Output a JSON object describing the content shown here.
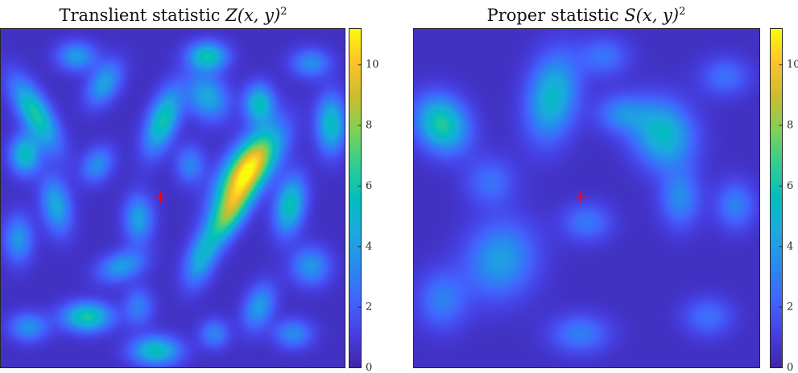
{
  "chart_data": [
    {
      "type": "heatmap",
      "title_text": "Translient statistic ",
      "title_math": "Z(x, y)",
      "title_sup": "2",
      "colorbar": {
        "min": 0,
        "max": 11.2,
        "ticks": [
          "0",
          "2",
          "4",
          "6",
          "8",
          "10"
        ],
        "tick_values": [
          0,
          2,
          4,
          6,
          8,
          10
        ],
        "colormap": "parula"
      },
      "marker": {
        "symbol": "+",
        "color": "#ff0000",
        "x": 0.465,
        "y": 0.5
      },
      "blobs": [
        {
          "x": 0.72,
          "y": 0.41,
          "sx": 0.04,
          "sy": 0.09,
          "rot": 35,
          "value": 11
        },
        {
          "x": 0.66,
          "y": 0.55,
          "sx": 0.03,
          "sy": 0.07,
          "rot": 30,
          "value": 6.5
        },
        {
          "x": 0.84,
          "y": 0.52,
          "sx": 0.03,
          "sy": 0.06,
          "rot": 10,
          "value": 5.8
        },
        {
          "x": 0.1,
          "y": 0.25,
          "sx": 0.03,
          "sy": 0.08,
          "rot": -30,
          "value": 6.2
        },
        {
          "x": 0.07,
          "y": 0.37,
          "sx": 0.03,
          "sy": 0.04,
          "rot": 0,
          "value": 5.6
        },
        {
          "x": 0.47,
          "y": 0.27,
          "sx": 0.03,
          "sy": 0.07,
          "rot": 20,
          "value": 6.0
        },
        {
          "x": 0.75,
          "y": 0.22,
          "sx": 0.03,
          "sy": 0.04,
          "rot": 0,
          "value": 5.5
        },
        {
          "x": 0.96,
          "y": 0.28,
          "sx": 0.03,
          "sy": 0.06,
          "rot": 0,
          "value": 5.5
        },
        {
          "x": 0.6,
          "y": 0.08,
          "sx": 0.04,
          "sy": 0.03,
          "rot": 0,
          "value": 5.8
        },
        {
          "x": 0.6,
          "y": 0.2,
          "sx": 0.04,
          "sy": 0.05,
          "rot": -30,
          "value": 4.5
        },
        {
          "x": 0.25,
          "y": 0.85,
          "sx": 0.05,
          "sy": 0.03,
          "rot": 0,
          "value": 6.2
        },
        {
          "x": 0.45,
          "y": 0.95,
          "sx": 0.05,
          "sy": 0.03,
          "rot": 0,
          "value": 5.6
        },
        {
          "x": 0.3,
          "y": 0.16,
          "sx": 0.03,
          "sy": 0.05,
          "rot": 30,
          "value": 4.2
        },
        {
          "x": 0.4,
          "y": 0.56,
          "sx": 0.03,
          "sy": 0.05,
          "rot": 0,
          "value": 4.2
        },
        {
          "x": 0.16,
          "y": 0.52,
          "sx": 0.03,
          "sy": 0.06,
          "rot": -10,
          "value": 4.5
        },
        {
          "x": 0.58,
          "y": 0.68,
          "sx": 0.03,
          "sy": 0.06,
          "rot": 20,
          "value": 4.3
        },
        {
          "x": 0.35,
          "y": 0.7,
          "sx": 0.05,
          "sy": 0.03,
          "rot": -20,
          "value": 4.0
        },
        {
          "x": 0.05,
          "y": 0.62,
          "sx": 0.03,
          "sy": 0.05,
          "rot": 0,
          "value": 3.8
        },
        {
          "x": 0.9,
          "y": 0.7,
          "sx": 0.04,
          "sy": 0.04,
          "rot": 0,
          "value": 3.8
        },
        {
          "x": 0.75,
          "y": 0.82,
          "sx": 0.03,
          "sy": 0.05,
          "rot": 20,
          "value": 4.0
        },
        {
          "x": 0.22,
          "y": 0.08,
          "sx": 0.04,
          "sy": 0.03,
          "rot": 0,
          "value": 4.0
        },
        {
          "x": 0.08,
          "y": 0.88,
          "sx": 0.04,
          "sy": 0.03,
          "rot": 0,
          "value": 3.6
        },
        {
          "x": 0.9,
          "y": 0.1,
          "sx": 0.04,
          "sy": 0.03,
          "rot": 0,
          "value": 3.5
        },
        {
          "x": 0.55,
          "y": 0.4,
          "sx": 0.03,
          "sy": 0.04,
          "rot": 0,
          "value": 3.2
        },
        {
          "x": 0.28,
          "y": 0.4,
          "sx": 0.03,
          "sy": 0.04,
          "rot": 30,
          "value": 3.5
        },
        {
          "x": 0.85,
          "y": 0.9,
          "sx": 0.04,
          "sy": 0.03,
          "rot": 0,
          "value": 3.4
        },
        {
          "x": 0.62,
          "y": 0.9,
          "sx": 0.03,
          "sy": 0.03,
          "rot": 0,
          "value": 3.2
        },
        {
          "x": 0.4,
          "y": 0.82,
          "sx": 0.03,
          "sy": 0.04,
          "rot": 0,
          "value": 3.0
        }
      ]
    },
    {
      "type": "heatmap",
      "title_text": "Proper statistic ",
      "title_math": "S(x, y)",
      "title_sup": "2",
      "colorbar": {
        "min": 0,
        "max": 11.2,
        "ticks": [
          "0",
          "2",
          "4",
          "6",
          "8",
          "10"
        ],
        "tick_values": [
          0,
          2,
          4,
          6,
          8,
          10
        ],
        "colormap": "parula"
      },
      "marker": {
        "symbol": "+",
        "color": "#ff0000",
        "x": 0.485,
        "y": 0.5
      },
      "blobs": [
        {
          "x": 0.08,
          "y": 0.28,
          "sx": 0.05,
          "sy": 0.06,
          "rot": -30,
          "value": 6.4
        },
        {
          "x": 0.4,
          "y": 0.2,
          "sx": 0.05,
          "sy": 0.09,
          "rot": 10,
          "value": 5.3
        },
        {
          "x": 0.72,
          "y": 0.31,
          "sx": 0.06,
          "sy": 0.07,
          "rot": -20,
          "value": 5.4
        },
        {
          "x": 0.6,
          "y": 0.25,
          "sx": 0.05,
          "sy": 0.04,
          "rot": 0,
          "value": 3.2
        },
        {
          "x": 0.25,
          "y": 0.68,
          "sx": 0.07,
          "sy": 0.08,
          "rot": 20,
          "value": 4.1
        },
        {
          "x": 0.77,
          "y": 0.5,
          "sx": 0.04,
          "sy": 0.06,
          "rot": 0,
          "value": 3.4
        },
        {
          "x": 0.93,
          "y": 0.52,
          "sx": 0.04,
          "sy": 0.05,
          "rot": 0,
          "value": 3.1
        },
        {
          "x": 0.48,
          "y": 0.9,
          "sx": 0.06,
          "sy": 0.04,
          "rot": 0,
          "value": 3.0
        },
        {
          "x": 0.08,
          "y": 0.8,
          "sx": 0.05,
          "sy": 0.06,
          "rot": 0,
          "value": 3.0
        },
        {
          "x": 0.5,
          "y": 0.57,
          "sx": 0.05,
          "sy": 0.04,
          "rot": 0,
          "value": 2.8
        },
        {
          "x": 0.85,
          "y": 0.85,
          "sx": 0.05,
          "sy": 0.04,
          "rot": 0,
          "value": 2.6
        },
        {
          "x": 0.22,
          "y": 0.45,
          "sx": 0.05,
          "sy": 0.05,
          "rot": 0,
          "value": 2.6
        },
        {
          "x": 0.55,
          "y": 0.08,
          "sx": 0.05,
          "sy": 0.04,
          "rot": 0,
          "value": 2.7
        },
        {
          "x": 0.9,
          "y": 0.14,
          "sx": 0.05,
          "sy": 0.04,
          "rot": 0,
          "value": 2.6
        }
      ]
    }
  ]
}
